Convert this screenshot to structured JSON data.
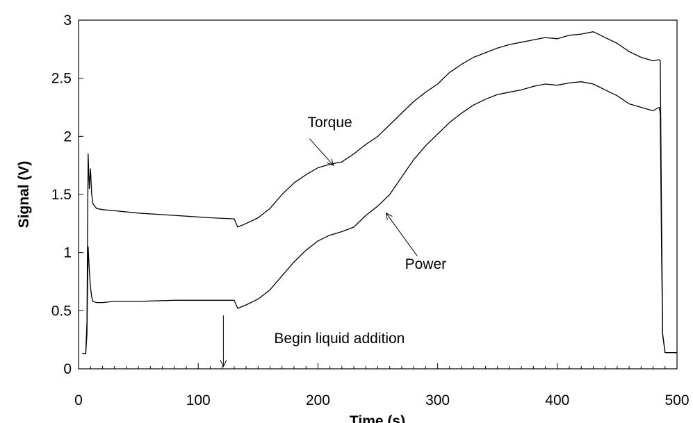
{
  "chart_data": {
    "type": "line",
    "title": "",
    "xlabel": "Time (s)",
    "ylabel": "Signal (V)",
    "xlim": [
      0,
      500
    ],
    "ylim": [
      0,
      3
    ],
    "x_ticks": [
      0,
      100,
      200,
      300,
      400,
      500
    ],
    "y_ticks": [
      0,
      0.5,
      1,
      1.5,
      2,
      2.5,
      3
    ],
    "y_tick_labels": [
      "0",
      "0.5",
      "1",
      "1.5",
      "2",
      "2.5",
      "3"
    ],
    "grid": false,
    "legend": "none",
    "series": [
      {
        "name": "Torque",
        "x": [
          3,
          6,
          7,
          8,
          9,
          10,
          11,
          12,
          15,
          20,
          30,
          50,
          80,
          110,
          130,
          133,
          140,
          150,
          160,
          170,
          180,
          190,
          200,
          210,
          220,
          230,
          240,
          250,
          260,
          270,
          280,
          290,
          300,
          310,
          320,
          330,
          340,
          350,
          360,
          370,
          380,
          390,
          400,
          410,
          420,
          430,
          440,
          450,
          460,
          470,
          480,
          485,
          486,
          487,
          488,
          490,
          500
        ],
        "y": [
          0.13,
          0.13,
          0.4,
          1.85,
          1.55,
          1.72,
          1.5,
          1.42,
          1.38,
          1.37,
          1.36,
          1.34,
          1.32,
          1.3,
          1.29,
          1.22,
          1.25,
          1.3,
          1.38,
          1.5,
          1.6,
          1.67,
          1.73,
          1.76,
          1.78,
          1.85,
          1.93,
          2.0,
          2.1,
          2.2,
          2.3,
          2.38,
          2.45,
          2.55,
          2.62,
          2.68,
          2.72,
          2.76,
          2.79,
          2.81,
          2.83,
          2.85,
          2.84,
          2.87,
          2.88,
          2.9,
          2.85,
          2.8,
          2.73,
          2.68,
          2.65,
          2.66,
          2.65,
          1.4,
          0.3,
          0.14,
          0.14
        ]
      },
      {
        "name": "Power",
        "x": [
          3,
          6,
          7,
          8,
          9,
          10,
          11,
          12,
          15,
          20,
          30,
          50,
          80,
          110,
          130,
          133,
          140,
          150,
          160,
          170,
          180,
          190,
          200,
          210,
          220,
          230,
          240,
          250,
          260,
          270,
          280,
          290,
          300,
          310,
          320,
          330,
          340,
          350,
          360,
          370,
          380,
          390,
          400,
          410,
          420,
          430,
          440,
          450,
          460,
          470,
          480,
          485,
          486,
          487,
          488,
          490,
          500
        ],
        "y": [
          0.13,
          0.13,
          0.3,
          1.05,
          0.85,
          0.7,
          0.62,
          0.58,
          0.57,
          0.57,
          0.58,
          0.58,
          0.59,
          0.59,
          0.59,
          0.52,
          0.55,
          0.6,
          0.68,
          0.8,
          0.92,
          1.02,
          1.1,
          1.15,
          1.18,
          1.22,
          1.32,
          1.4,
          1.5,
          1.65,
          1.8,
          1.92,
          2.02,
          2.12,
          2.2,
          2.27,
          2.32,
          2.36,
          2.38,
          2.4,
          2.43,
          2.45,
          2.44,
          2.46,
          2.47,
          2.45,
          2.4,
          2.35,
          2.28,
          2.25,
          2.22,
          2.25,
          2.2,
          1.1,
          0.3,
          0.14,
          0.14
        ]
      }
    ],
    "annotations": [
      {
        "text": "Torque",
        "text_x": 210,
        "text_y": 2.08,
        "arrow_from": [
          193,
          1.98
        ],
        "arrow_to": [
          213,
          1.75
        ]
      },
      {
        "text": "Power",
        "text_x": 290,
        "text_y": 0.86,
        "arrow_from": [
          283,
          0.97
        ],
        "arrow_to": [
          257,
          1.34
        ]
      },
      {
        "text": "Begin liquid addition",
        "text_x": 218,
        "text_y": 0.22,
        "arrow_from": [
          121,
          0.46
        ],
        "arrow_to": [
          121,
          0.02
        ]
      }
    ]
  }
}
